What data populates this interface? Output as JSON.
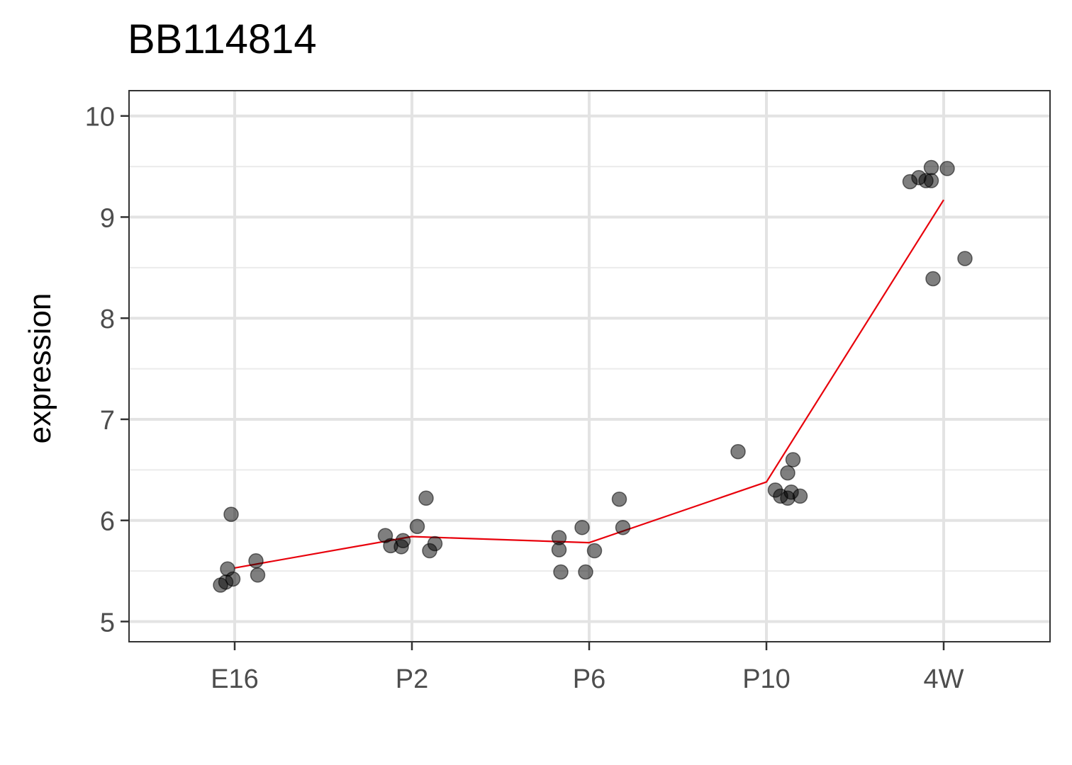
{
  "chart_data": {
    "type": "scatter",
    "title": "BB114814",
    "xlabel": "",
    "ylabel": "expression",
    "categories": [
      "E16",
      "P2",
      "P6",
      "P10",
      "4W"
    ],
    "ylim": [
      4.8,
      10.25
    ],
    "yticks": [
      5,
      6,
      7,
      8,
      9,
      10
    ],
    "grid": true,
    "points": [
      {
        "cat": "E16",
        "jitter": -0.08,
        "y": 5.36
      },
      {
        "cat": "E16",
        "jitter": -0.05,
        "y": 5.39
      },
      {
        "cat": "E16",
        "jitter": -0.01,
        "y": 5.42
      },
      {
        "cat": "E16",
        "jitter": -0.04,
        "y": 5.52
      },
      {
        "cat": "E16",
        "jitter": -0.02,
        "y": 6.06
      },
      {
        "cat": "E16",
        "jitter": 0.12,
        "y": 5.6
      },
      {
        "cat": "E16",
        "jitter": 0.13,
        "y": 5.46
      },
      {
        "cat": "P2",
        "jitter": -0.15,
        "y": 5.85
      },
      {
        "cat": "P2",
        "jitter": -0.12,
        "y": 5.75
      },
      {
        "cat": "P2",
        "jitter": -0.06,
        "y": 5.74
      },
      {
        "cat": "P2",
        "jitter": -0.05,
        "y": 5.8
      },
      {
        "cat": "P2",
        "jitter": 0.03,
        "y": 5.94
      },
      {
        "cat": "P2",
        "jitter": 0.08,
        "y": 6.22
      },
      {
        "cat": "P2",
        "jitter": 0.1,
        "y": 5.7
      },
      {
        "cat": "P2",
        "jitter": 0.13,
        "y": 5.77
      },
      {
        "cat": "P6",
        "jitter": -0.17,
        "y": 5.83
      },
      {
        "cat": "P6",
        "jitter": -0.17,
        "y": 5.71
      },
      {
        "cat": "P6",
        "jitter": -0.16,
        "y": 5.49
      },
      {
        "cat": "P6",
        "jitter": -0.04,
        "y": 5.93
      },
      {
        "cat": "P6",
        "jitter": -0.02,
        "y": 5.49
      },
      {
        "cat": "P6",
        "jitter": 0.03,
        "y": 5.7
      },
      {
        "cat": "P6",
        "jitter": 0.17,
        "y": 6.21
      },
      {
        "cat": "P6",
        "jitter": 0.19,
        "y": 5.93
      },
      {
        "cat": "P10",
        "jitter": -0.16,
        "y": 6.68
      },
      {
        "cat": "P10",
        "jitter": 0.05,
        "y": 6.3
      },
      {
        "cat": "P10",
        "jitter": 0.08,
        "y": 6.24
      },
      {
        "cat": "P10",
        "jitter": 0.12,
        "y": 6.47
      },
      {
        "cat": "P10",
        "jitter": 0.12,
        "y": 6.22
      },
      {
        "cat": "P10",
        "jitter": 0.14,
        "y": 6.28
      },
      {
        "cat": "P10",
        "jitter": 0.15,
        "y": 6.6
      },
      {
        "cat": "P10",
        "jitter": 0.19,
        "y": 6.24
      },
      {
        "cat": "4W",
        "jitter": -0.19,
        "y": 9.35
      },
      {
        "cat": "4W",
        "jitter": -0.14,
        "y": 9.39
      },
      {
        "cat": "4W",
        "jitter": -0.1,
        "y": 9.36
      },
      {
        "cat": "4W",
        "jitter": -0.07,
        "y": 9.49
      },
      {
        "cat": "4W",
        "jitter": -0.07,
        "y": 9.36
      },
      {
        "cat": "4W",
        "jitter": -0.06,
        "y": 8.39
      },
      {
        "cat": "4W",
        "jitter": 0.02,
        "y": 9.48
      },
      {
        "cat": "4W",
        "jitter": 0.12,
        "y": 8.59
      }
    ],
    "mean_line": {
      "color": "#e8000b",
      "values": [
        5.53,
        5.84,
        5.78,
        6.38,
        9.17
      ]
    },
    "point_color": "#000000",
    "point_opacity": 0.5
  }
}
